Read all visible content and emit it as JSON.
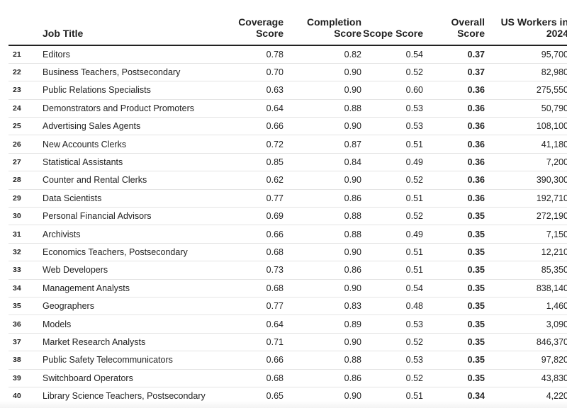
{
  "chart_data": {
    "type": "table",
    "columns": [
      {
        "key": "rank",
        "label": ""
      },
      {
        "key": "title",
        "label": "Job Title"
      },
      {
        "key": "coverage",
        "label": "Coverage Score"
      },
      {
        "key": "completion",
        "label": "Completion Score"
      },
      {
        "key": "scope",
        "label": "Scope Score"
      },
      {
        "key": "overall",
        "label": "Overall Score"
      },
      {
        "key": "workers",
        "label": "US Workers in 2024"
      }
    ],
    "rows": [
      {
        "rank": "21",
        "title": "Editors",
        "coverage": "0.78",
        "completion": "0.82",
        "scope": "0.54",
        "overall": "0.37",
        "workers": "95,700"
      },
      {
        "rank": "22",
        "title": "Business Teachers, Postsecondary",
        "coverage": "0.70",
        "completion": "0.90",
        "scope": "0.52",
        "overall": "0.37",
        "workers": "82,980"
      },
      {
        "rank": "23",
        "title": "Public Relations Specialists",
        "coverage": "0.63",
        "completion": "0.90",
        "scope": "0.60",
        "overall": "0.36",
        "workers": "275,550"
      },
      {
        "rank": "24",
        "title": "Demonstrators and Product Promoters",
        "coverage": "0.64",
        "completion": "0.88",
        "scope": "0.53",
        "overall": "0.36",
        "workers": "50,790"
      },
      {
        "rank": "25",
        "title": "Advertising Sales Agents",
        "coverage": "0.66",
        "completion": "0.90",
        "scope": "0.53",
        "overall": "0.36",
        "workers": "108,100"
      },
      {
        "rank": "26",
        "title": "New Accounts Clerks",
        "coverage": "0.72",
        "completion": "0.87",
        "scope": "0.51",
        "overall": "0.36",
        "workers": "41,180"
      },
      {
        "rank": "27",
        "title": "Statistical Assistants",
        "coverage": "0.85",
        "completion": "0.84",
        "scope": "0.49",
        "overall": "0.36",
        "workers": "7,200"
      },
      {
        "rank": "28",
        "title": "Counter and Rental Clerks",
        "coverage": "0.62",
        "completion": "0.90",
        "scope": "0.52",
        "overall": "0.36",
        "workers": "390,300"
      },
      {
        "rank": "29",
        "title": "Data Scientists",
        "coverage": "0.77",
        "completion": "0.86",
        "scope": "0.51",
        "overall": "0.36",
        "workers": "192,710"
      },
      {
        "rank": "30",
        "title": "Personal Financial Advisors",
        "coverage": "0.69",
        "completion": "0.88",
        "scope": "0.52",
        "overall": "0.35",
        "workers": "272,190"
      },
      {
        "rank": "31",
        "title": "Archivists",
        "coverage": "0.66",
        "completion": "0.88",
        "scope": "0.49",
        "overall": "0.35",
        "workers": "7,150"
      },
      {
        "rank": "32",
        "title": "Economics Teachers, Postsecondary",
        "coverage": "0.68",
        "completion": "0.90",
        "scope": "0.51",
        "overall": "0.35",
        "workers": "12,210"
      },
      {
        "rank": "33",
        "title": "Web Developers",
        "coverage": "0.73",
        "completion": "0.86",
        "scope": "0.51",
        "overall": "0.35",
        "workers": "85,350"
      },
      {
        "rank": "34",
        "title": "Management Analysts",
        "coverage": "0.68",
        "completion": "0.90",
        "scope": "0.54",
        "overall": "0.35",
        "workers": "838,140"
      },
      {
        "rank": "35",
        "title": "Geographers",
        "coverage": "0.77",
        "completion": "0.83",
        "scope": "0.48",
        "overall": "0.35",
        "workers": "1,460"
      },
      {
        "rank": "36",
        "title": "Models",
        "coverage": "0.64",
        "completion": "0.89",
        "scope": "0.53",
        "overall": "0.35",
        "workers": "3,090"
      },
      {
        "rank": "37",
        "title": "Market Research Analysts",
        "coverage": "0.71",
        "completion": "0.90",
        "scope": "0.52",
        "overall": "0.35",
        "workers": "846,370"
      },
      {
        "rank": "38",
        "title": "Public Safety Telecommunicators",
        "coverage": "0.66",
        "completion": "0.88",
        "scope": "0.53",
        "overall": "0.35",
        "workers": "97,820"
      },
      {
        "rank": "39",
        "title": "Switchboard Operators",
        "coverage": "0.68",
        "completion": "0.86",
        "scope": "0.52",
        "overall": "0.35",
        "workers": "43,830"
      },
      {
        "rank": "40",
        "title": "Library Science Teachers, Postsecondary",
        "coverage": "0.65",
        "completion": "0.90",
        "scope": "0.51",
        "overall": "0.34",
        "workers": "4,220"
      }
    ]
  }
}
